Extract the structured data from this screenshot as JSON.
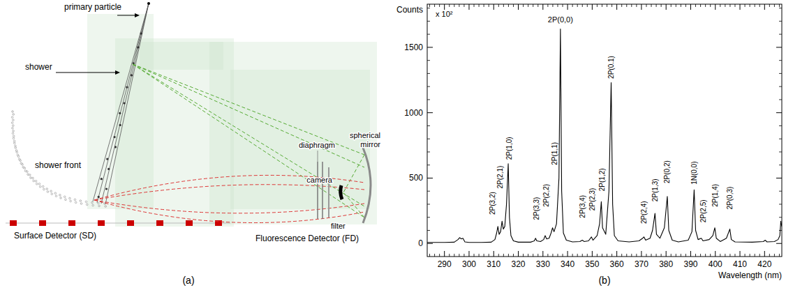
{
  "diagram": {
    "caption": "(a)",
    "labels": {
      "primary_particle": "primary particle",
      "shower": "shower",
      "shower_front": "shower front",
      "diaphragm": "diaphragm",
      "spherical_mirror": "spherical mirror",
      "camera": "camera",
      "filter": "filter",
      "surface_detector": "Surface Detector (SD)",
      "fluorescence_detector": "Fluorescence Detector (FD)"
    }
  },
  "chart_data": {
    "type": "line",
    "caption": "(b)",
    "x_label": "Wavelength (nm)",
    "y_label": "Counts",
    "y_multiplier": "x 10²",
    "color": "#000000",
    "x": [
      283,
      285,
      290,
      294,
      295.5,
      296.2,
      296.8,
      297.5,
      298.3,
      300,
      305,
      309,
      310.5,
      311.2,
      311.7,
      312.2,
      312.8,
      313.4,
      313.9,
      314.5,
      315.2,
      315.9,
      316.4,
      317,
      318,
      320,
      325,
      326.5,
      327,
      327.5,
      329,
      330.3,
      330.9,
      331.5,
      332.5,
      333.3,
      333.9,
      334.5,
      335.5,
      336.5,
      337.1,
      337.6,
      338.3,
      339.5,
      342,
      345,
      346,
      346.7,
      348.5,
      349.7,
      350.3,
      352,
      353,
      353.7,
      354.2,
      355.5,
      356.8,
      357.7,
      358.3,
      359,
      360.5,
      365,
      369,
      370.5,
      371,
      371.7,
      373.5,
      374.5,
      375.5,
      376.1,
      377.5,
      379.3,
      380.5,
      381.1,
      382.5,
      385,
      389,
      390.5,
      391.4,
      392,
      393,
      394.3,
      395,
      397.5,
      399,
      399.8,
      400.4,
      402,
      404.5,
      405.9,
      406.5,
      408,
      415,
      419.5,
      420.3,
      421,
      424,
      425.5,
      426.2,
      426.6,
      427
    ],
    "values": [
      8,
      8,
      8,
      10,
      30,
      45,
      35,
      40,
      12,
      8,
      8,
      10,
      30,
      80,
      130,
      70,
      90,
      170,
      110,
      130,
      300,
      610,
      200,
      60,
      20,
      10,
      10,
      20,
      40,
      20,
      15,
      30,
      60,
      35,
      40,
      80,
      120,
      90,
      150,
      500,
      1640,
      400,
      80,
      25,
      12,
      15,
      25,
      15,
      20,
      50,
      25,
      60,
      150,
      320,
      120,
      70,
      400,
      1230,
      300,
      60,
      20,
      12,
      20,
      40,
      50,
      25,
      40,
      100,
      230,
      70,
      40,
      120,
      360,
      100,
      25,
      12,
      25,
      90,
      410,
      100,
      30,
      40,
      20,
      30,
      60,
      120,
      40,
      15,
      40,
      110,
      30,
      12,
      10,
      15,
      25,
      12,
      15,
      30,
      60,
      170,
      130
    ],
    "xlim": [
      283,
      427
    ],
    "ylim": [
      -100,
      1830
    ],
    "xticks": [
      290,
      300,
      310,
      320,
      330,
      340,
      350,
      360,
      370,
      380,
      390,
      400,
      410,
      420
    ],
    "yticks": [
      0,
      500,
      1000,
      1500
    ],
    "annotations": [
      {
        "text": "2P(3,2)",
        "x": 309.6,
        "y": 220
      },
      {
        "text": "2P(2,1)",
        "x": 312.6,
        "y": 420
      },
      {
        "text": "2P(1,0)",
        "x": 316.2,
        "y": 640
      },
      {
        "text": "2P(3,3)",
        "x": 327.3,
        "y": 180
      },
      {
        "text": "2P(2,2)",
        "x": 331.2,
        "y": 280
      },
      {
        "text": "2P(1,1)",
        "x": 334.6,
        "y": 600
      },
      {
        "text": "2P(0,0)",
        "x": 337.1,
        "y": 1690,
        "orientation": "horizontal"
      },
      {
        "text": "2P(3,4)",
        "x": 346,
        "y": 195
      },
      {
        "text": "2P(2,3)",
        "x": 350,
        "y": 250
      },
      {
        "text": "2P(1,2)",
        "x": 353.9,
        "y": 400
      },
      {
        "text": "2P(0.1)",
        "x": 357.8,
        "y": 1260
      },
      {
        "text": "2P(2,4)",
        "x": 371,
        "y": 150
      },
      {
        "text": "2P(1,3)",
        "x": 375.5,
        "y": 320
      },
      {
        "text": "2P(0,2)",
        "x": 380.5,
        "y": 460
      },
      {
        "text": "1N(0,0)",
        "x": 391.4,
        "y": 450
      },
      {
        "text": "2P(2,5)",
        "x": 395,
        "y": 160
      },
      {
        "text": "2P(1,4)",
        "x": 399.8,
        "y": 280
      },
      {
        "text": "2P(0,3)",
        "x": 405.9,
        "y": 260
      }
    ]
  }
}
